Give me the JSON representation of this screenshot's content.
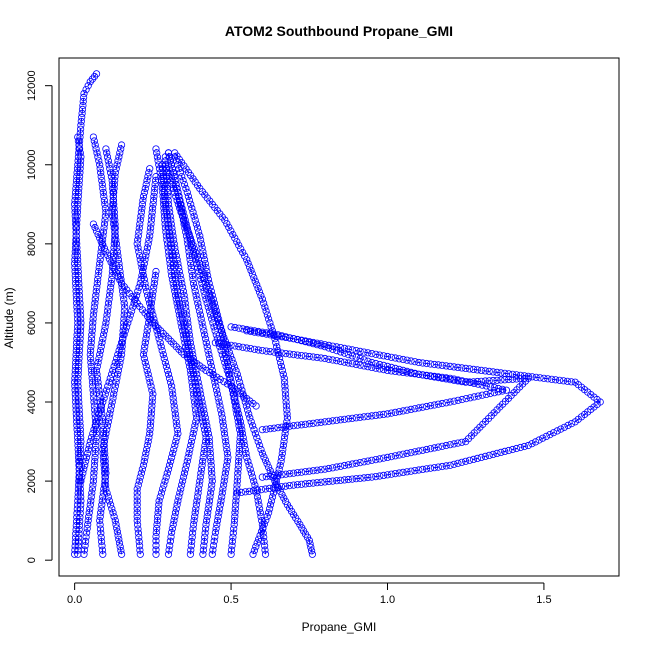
{
  "chart_data": {
    "type": "scatter",
    "title": "ATOM2 Southbound Propane_GMI",
    "xlabel": "Propane_GMI",
    "ylabel": "Altitude (m)",
    "xlim": [
      -0.05,
      1.74
    ],
    "ylim": [
      -400,
      12700
    ],
    "xticks": [
      0.0,
      0.5,
      1.0,
      1.5
    ],
    "xtick_labels": [
      "0.0",
      "0.5",
      "1.0",
      "1.5"
    ],
    "yticks": [
      0,
      2000,
      4000,
      6000,
      8000,
      10000,
      12000
    ],
    "ytick_labels": [
      "0",
      "2000",
      "4000",
      "6000",
      "8000",
      "10000",
      "12000"
    ],
    "grid": false,
    "marker": "open-circle",
    "series_color": "#0000ff",
    "series": [
      {
        "x": [
          0.0,
          0.01,
          0.02,
          0.01,
          0.02,
          0.01,
          0.0,
          0.01,
          0.02,
          0.03,
          0.05,
          0.07
        ],
        "y": [
          150,
          1500,
          3000,
          4500,
          6000,
          7500,
          9000,
          10000,
          11000,
          11800,
          12100,
          12300
        ]
      },
      {
        "x": [
          0.01,
          0.02,
          0.01,
          0.0,
          0.01,
          0.0,
          0.01,
          0.02,
          0.01
        ],
        "y": [
          150,
          1500,
          3000,
          4500,
          6000,
          7500,
          9000,
          10200,
          10700
        ]
      },
      {
        "x": [
          0.03,
          0.04,
          0.06,
          0.07,
          0.06,
          0.05,
          0.06,
          0.08,
          0.1,
          0.08,
          0.06
        ],
        "y": [
          150,
          800,
          2000,
          3200,
          4200,
          5200,
          6200,
          7500,
          8800,
          10000,
          10700
        ]
      },
      {
        "x": [
          0.09,
          0.08,
          0.1,
          0.09,
          0.07,
          0.1,
          0.12,
          0.13,
          0.12,
          0.1
        ],
        "y": [
          150,
          1000,
          2200,
          3500,
          4800,
          6000,
          7200,
          8400,
          9600,
          10400
        ]
      },
      {
        "x": [
          0.15,
          0.13,
          0.1,
          0.09,
          0.12,
          0.15,
          0.16,
          0.14,
          0.12,
          0.13,
          0.15
        ],
        "y": [
          150,
          1000,
          1800,
          2800,
          4000,
          5200,
          6400,
          7600,
          8800,
          9800,
          10500
        ]
      },
      {
        "x": [
          0.21,
          0.2,
          0.2,
          0.22,
          0.24,
          0.25,
          0.22,
          0.24,
          0.26
        ],
        "y": [
          150,
          1000,
          1800,
          2400,
          3200,
          4200,
          5200,
          6200,
          7300
        ]
      },
      {
        "x": [
          0.26,
          0.26,
          0.27,
          0.3,
          0.33,
          0.31,
          0.27,
          0.23,
          0.2,
          0.22,
          0.24
        ],
        "y": [
          150,
          600,
          1500,
          2300,
          3200,
          4400,
          5600,
          6800,
          8000,
          9200,
          9900
        ]
      },
      {
        "x": [
          0.3,
          0.31,
          0.33,
          0.36,
          0.39,
          0.37,
          0.34,
          0.31,
          0.29,
          0.28,
          0.26
        ],
        "y": [
          150,
          700,
          1500,
          2500,
          3600,
          4800,
          6000,
          7200,
          8400,
          9500,
          10400
        ]
      },
      {
        "x": [
          0.37,
          0.38,
          0.4,
          0.42,
          0.39,
          0.36,
          0.33,
          0.31,
          0.29,
          0.28
        ],
        "y": [
          150,
          900,
          2000,
          3100,
          4300,
          5500,
          6700,
          7900,
          9000,
          10000
        ]
      },
      {
        "x": [
          0.41,
          0.42,
          0.44,
          0.43,
          0.4,
          0.37,
          0.35,
          0.32,
          0.3,
          0.29
        ],
        "y": [
          150,
          900,
          2000,
          3100,
          4300,
          5500,
          6700,
          7900,
          9000,
          10200
        ]
      },
      {
        "x": [
          0.44,
          0.45,
          0.47,
          0.49,
          0.47,
          0.44,
          0.41,
          0.38,
          0.36,
          0.33,
          0.3
        ],
        "y": [
          150,
          700,
          1600,
          2600,
          3700,
          4800,
          5900,
          7000,
          8100,
          9300,
          10300
        ]
      },
      {
        "x": [
          0.5,
          0.51,
          0.52,
          0.53,
          0.5,
          0.47,
          0.43,
          0.4,
          0.36,
          0.32
        ],
        "y": [
          150,
          900,
          2000,
          3200,
          4500,
          5800,
          7000,
          8200,
          9300,
          10200
        ]
      },
      {
        "x": [
          0.61,
          0.6,
          0.58,
          0.55,
          0.53,
          0.5,
          0.46,
          0.42,
          0.38,
          0.34,
          0.3
        ],
        "y": [
          150,
          900,
          1800,
          2600,
          3500,
          4500,
          5500,
          6600,
          7800,
          9000,
          10300
        ]
      },
      {
        "x": [
          0.76,
          0.75,
          0.72,
          0.68,
          0.64,
          0.6,
          0.56,
          0.52,
          0.46,
          0.4,
          0.34,
          0.29
        ],
        "y": [
          150,
          500,
          900,
          1400,
          2000,
          2700,
          3600,
          4700,
          6000,
          7500,
          8800,
          10000
        ]
      },
      {
        "x": [
          0.57,
          0.62,
          0.66,
          0.68,
          0.67,
          0.64,
          0.6,
          0.55,
          0.48,
          0.4,
          0.32
        ],
        "y": [
          150,
          1200,
          2500,
          3600,
          4600,
          5600,
          6600,
          7600,
          8600,
          9400,
          10300
        ]
      },
      {
        "x": [
          0.02,
          0.05,
          0.09,
          0.13,
          0.17,
          0.21,
          0.24,
          0.26
        ],
        "y": [
          2000,
          3000,
          4000,
          5000,
          6000,
          7000,
          8200,
          9700
        ]
      },
      {
        "x": [
          0.06,
          0.1,
          0.15,
          0.2,
          0.25,
          0.3,
          0.35,
          0.42,
          0.5,
          0.58
        ],
        "y": [
          8500,
          7800,
          7000,
          6500,
          6000,
          5600,
          5200,
          4800,
          4400,
          3900
        ]
      },
      {
        "x": [
          0.55,
          0.7,
          0.9,
          1.1,
          1.3,
          1.5,
          1.6,
          1.68,
          1.6,
          1.45,
          1.2,
          0.95,
          0.7,
          0.52
        ],
        "y": [
          5800,
          5600,
          5300,
          5000,
          4800,
          4600,
          4500,
          4000,
          3500,
          2900,
          2400,
          2100,
          1900,
          1700
        ]
      },
      {
        "x": [
          0.45,
          0.6,
          0.8,
          1.0,
          1.2,
          1.38,
          1.2,
          1.0,
          0.8,
          0.6
        ],
        "y": [
          5500,
          5300,
          5100,
          4800,
          4600,
          4300,
          4000,
          3700,
          3500,
          3300
        ]
      },
      {
        "x": [
          0.5,
          0.65,
          0.8,
          0.95,
          1.1,
          1.25,
          1.45,
          1.25,
          1.0,
          0.8,
          0.6
        ],
        "y": [
          5900,
          5700,
          5400,
          5000,
          4700,
          4500,
          4600,
          3000,
          2600,
          2300,
          2100
        ]
      }
    ]
  }
}
